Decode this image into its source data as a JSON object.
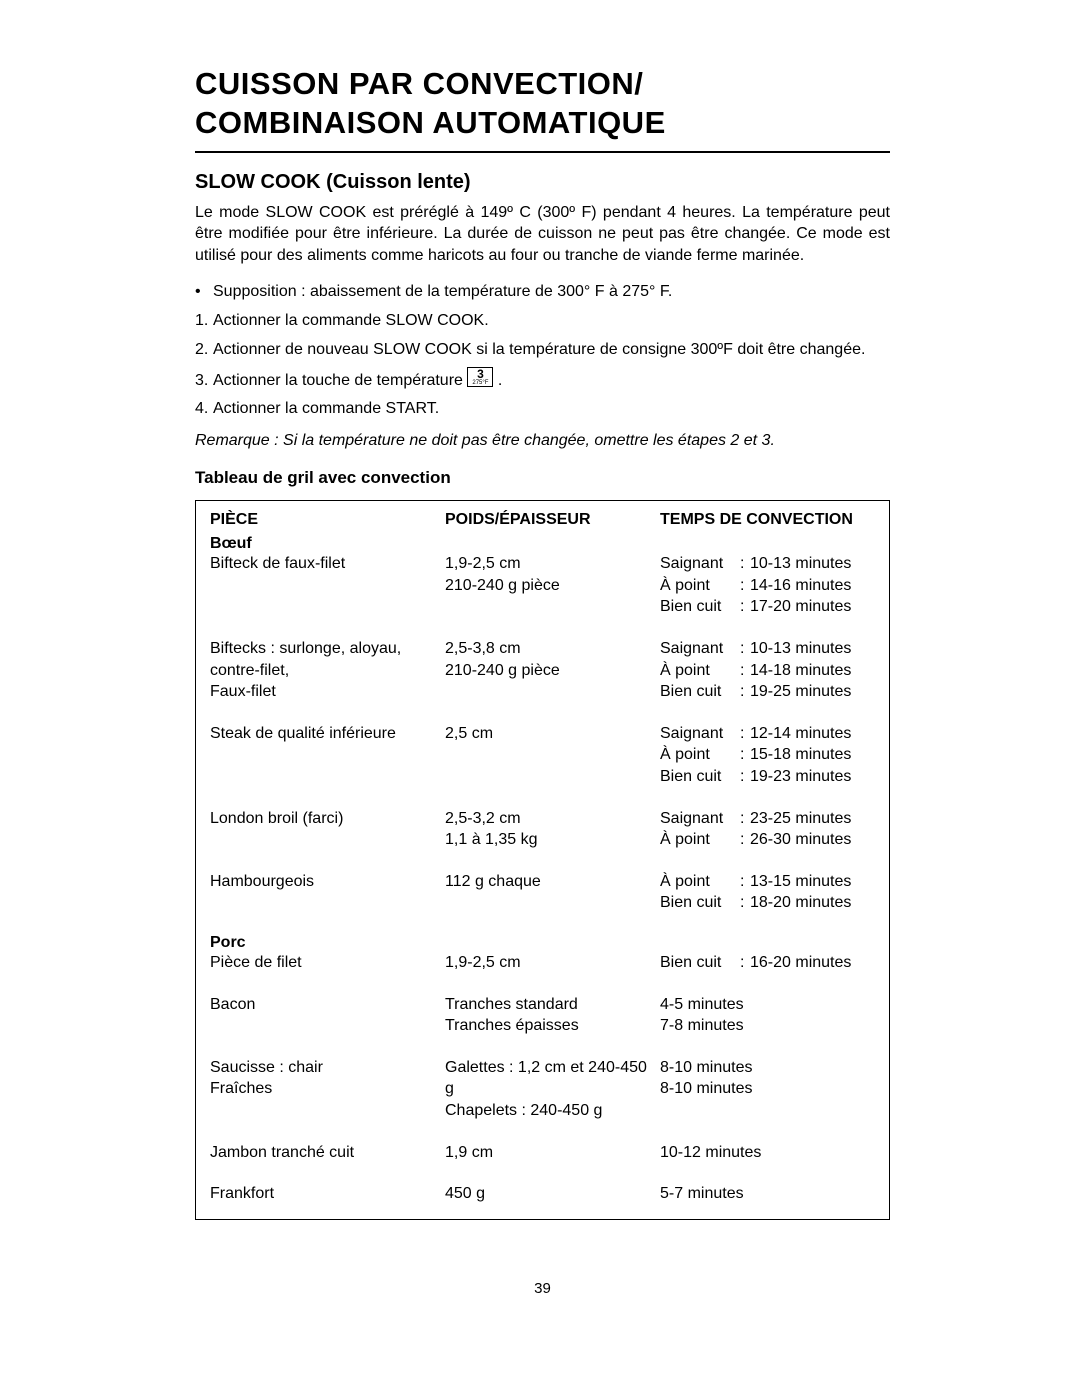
{
  "title_line1": "CUISSON PAR CONVECTION/",
  "title_line2": "COMBINAISON AUTOMATIQUE",
  "section_title": "SLOW COOK (Cuisson lente)",
  "intro": "Le mode SLOW COOK est préréglé à 149º C (300º F) pendant 4 heures. La température peut être modifiée pour être inférieure. La durée de cuisson ne peut pas être changée. Ce mode est utilisé pour des aliments comme haricots au four ou tranche de viande ferme marinée.",
  "steps": [
    {
      "bullet": "•",
      "text": "Supposition : abaissement de la température de 300° F à 275° F."
    },
    {
      "bullet": "1.",
      "text": "Actionner la commande SLOW COOK."
    },
    {
      "bullet": "2.",
      "text": "Actionner de nouveau SLOW COOK si la température de consigne 300ºF doit être changée."
    },
    {
      "bullet": "3.",
      "text_pre": "Actionner la touche de température ",
      "button_top": "3",
      "button_bottom": "275°F",
      "text_post": " ."
    },
    {
      "bullet": "4.",
      "text": "Actionner la commande START."
    }
  ],
  "note": "Remarque : Si la température ne doit pas être changée, omettre les étapes 2 et 3.",
  "table_title": "Tableau de gril avec convection",
  "columns": [
    "PIÈCE",
    "POIDS/ÉPAISSEUR",
    "TEMPS DE CONVECTION"
  ],
  "categories": [
    {
      "name": "Bœuf",
      "rows": [
        {
          "piece": [
            "Bifteck de faux-filet"
          ],
          "weight": [
            "1,9-2,5 cm",
            "210-240 g pièce"
          ],
          "timings": [
            {
              "done": "Saignant",
              "time": "10-13 minutes"
            },
            {
              "done": "À point",
              "time": "14-16 minutes"
            },
            {
              "done": "Bien cuit",
              "time": "17-20 minutes"
            }
          ]
        },
        {
          "piece": [
            "Biftecks : surlonge, aloyau, contre-filet,",
            "Faux-filet"
          ],
          "weight": [
            "2,5-3,8 cm",
            "210-240 g pièce"
          ],
          "timings": [
            {
              "done": "Saignant",
              "time": "10-13 minutes"
            },
            {
              "done": "À point",
              "time": "14-18 minutes"
            },
            {
              "done": "Bien cuit",
              "time": "19-25 minutes"
            }
          ]
        },
        {
          "piece": [
            "Steak de qualité inférieure"
          ],
          "weight": [
            "2,5 cm"
          ],
          "timings": [
            {
              "done": "Saignant",
              "time": "12-14 minutes"
            },
            {
              "done": "À point",
              "time": "15-18 minutes"
            },
            {
              "done": "Bien cuit",
              "time": "19-23 minutes"
            }
          ]
        },
        {
          "piece": [
            "London broil (farci)"
          ],
          "weight": [
            "2,5-3,2 cm",
            "1,1 à 1,35 kg"
          ],
          "timings": [
            {
              "done": "Saignant",
              "time": "23-25 minutes"
            },
            {
              "done": "À point",
              "time": "26-30 minutes"
            }
          ]
        },
        {
          "piece": [
            "Hambourgeois"
          ],
          "weight": [
            "112 g chaque"
          ],
          "timings": [
            {
              "done": "À point",
              "time": "13-15 minutes"
            },
            {
              "done": "Bien cuit",
              "time": "18-20 minutes"
            }
          ]
        }
      ]
    },
    {
      "name": "Porc",
      "rows": [
        {
          "piece": [
            "Pièce de filet"
          ],
          "weight": [
            "1,9-2,5 cm"
          ],
          "timings": [
            {
              "done": "Bien cuit",
              "time": "16-20 minutes"
            }
          ]
        },
        {
          "piece": [
            "Bacon"
          ],
          "weight": [
            "Tranches standard",
            "Tranches épaisses"
          ],
          "plain_times": [
            "4-5 minutes",
            "7-8 minutes"
          ]
        },
        {
          "piece": [
            "Saucisse : chair",
            "Fraîches"
          ],
          "weight": [
            "Galettes : 1,2 cm et 240-450 g",
            "Chapelets : 240-450 g"
          ],
          "plain_times": [
            "8-10 minutes",
            "8-10 minutes"
          ]
        },
        {
          "piece": [
            "Jambon tranché cuit"
          ],
          "weight": [
            "1,9 cm"
          ],
          "plain_times": [
            "10-12 minutes"
          ]
        },
        {
          "piece": [
            "Frankfort"
          ],
          "weight": [
            "450 g"
          ],
          "plain_times": [
            "5-7 minutes"
          ]
        }
      ]
    }
  ],
  "page_number": "39"
}
